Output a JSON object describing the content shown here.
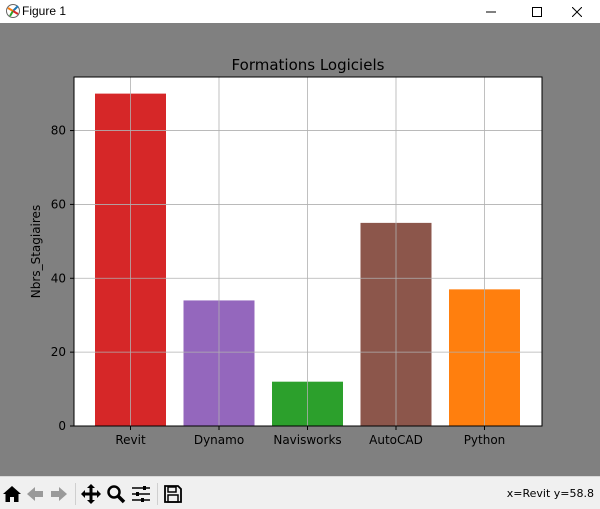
{
  "window": {
    "title": "Figure 1",
    "accent": "#808080"
  },
  "toolbar": {
    "buttons": [
      {
        "name": "home-icon"
      },
      {
        "name": "back-arrow-icon"
      },
      {
        "name": "forward-arrow-icon"
      },
      {
        "name": "pan-icon"
      },
      {
        "name": "zoom-icon"
      },
      {
        "name": "configure-subplots-icon"
      },
      {
        "name": "save-icon"
      }
    ],
    "coordinates": "x=Revit y=58.8"
  },
  "chart_data": {
    "type": "bar",
    "title": "Formations Logiciels",
    "xlabel": "",
    "ylabel": "Nbrs_Stagiaires",
    "categories": [
      "Revit",
      "Dynamo",
      "Navisworks",
      "AutoCAD",
      "Python"
    ],
    "values": [
      90,
      34,
      12,
      55,
      37
    ],
    "colors": [
      "#d62728",
      "#9467bd",
      "#2ca02c",
      "#8c564b",
      "#ff7f0e"
    ],
    "ylim": [
      0,
      94.5
    ],
    "yticks": [
      "0",
      "20",
      "40",
      "60",
      "80"
    ],
    "grid": true,
    "background": "#ffffff"
  }
}
